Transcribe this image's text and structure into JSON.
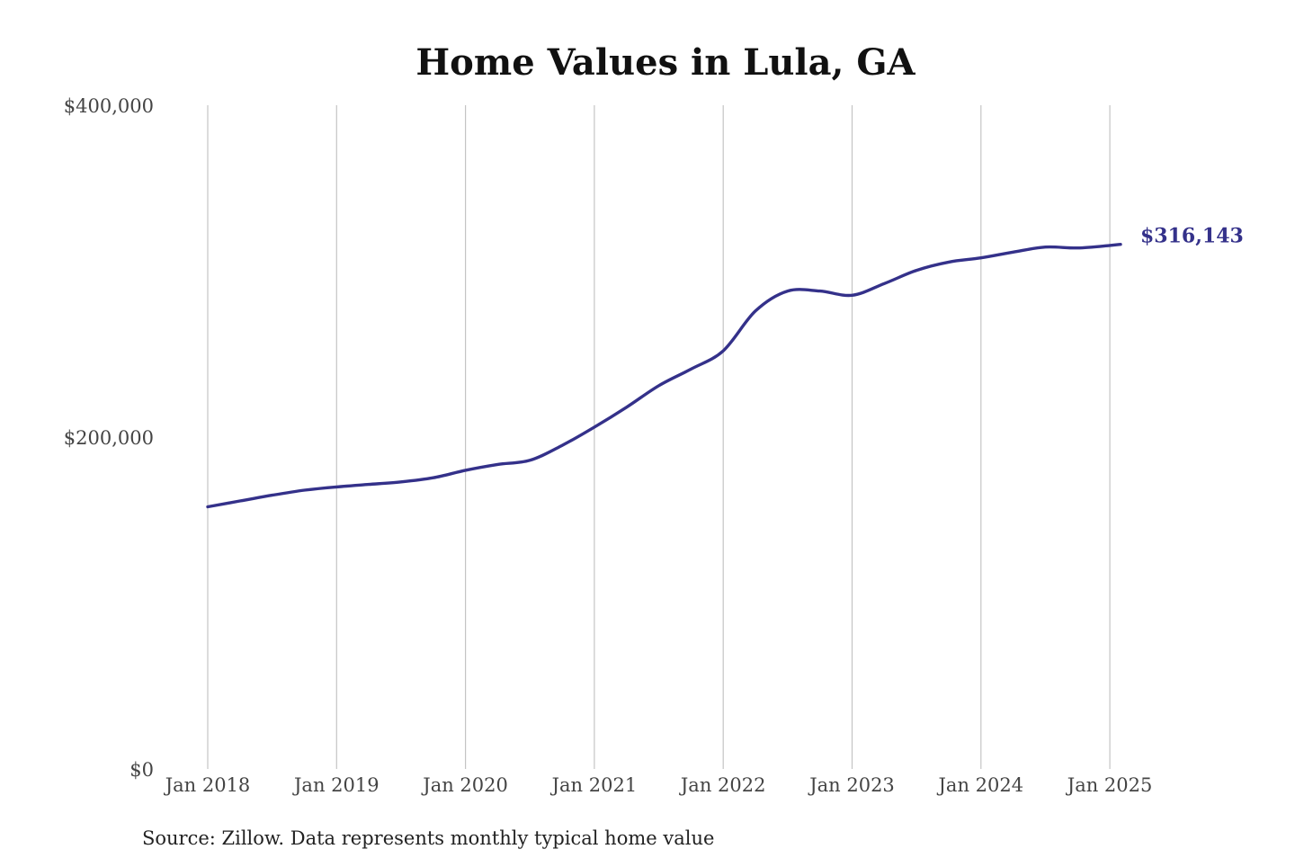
{
  "chart_data": {
    "type": "line",
    "title": "Home Values in Lula, GA",
    "source": "Source: Zillow. Data represents monthly typical home value",
    "xlabel": "",
    "ylabel": "",
    "ylim": [
      0,
      400000
    ],
    "xlim": [
      "2018-01",
      "2025-02"
    ],
    "y_ticks": [
      0,
      200000,
      400000
    ],
    "y_tick_labels": [
      "$0",
      "$200,000",
      "$400,000"
    ],
    "x_ticks": [
      "2018-01",
      "2019-01",
      "2020-01",
      "2021-01",
      "2022-01",
      "2023-01",
      "2024-01",
      "2025-01"
    ],
    "x_tick_labels": [
      "Jan 2018",
      "Jan 2019",
      "Jan 2020",
      "Jan 2021",
      "Jan 2022",
      "Jan 2023",
      "Jan 2024",
      "Jan 2025"
    ],
    "grid": {
      "x": true,
      "y": false
    },
    "line_color": "#34318a",
    "end_label": "$316,143",
    "series": [
      {
        "name": "",
        "x": [
          "2018-01",
          "2018-04",
          "2018-07",
          "2018-10",
          "2019-01",
          "2019-04",
          "2019-07",
          "2019-10",
          "2020-01",
          "2020-04",
          "2020-07",
          "2020-10",
          "2021-01",
          "2021-04",
          "2021-07",
          "2021-10",
          "2022-01",
          "2022-04",
          "2022-07",
          "2022-10",
          "2023-01",
          "2023-04",
          "2023-07",
          "2023-10",
          "2024-01",
          "2024-04",
          "2024-07",
          "2024-10",
          "2025-01",
          "2025-02"
        ],
        "values": [
          158000,
          161500,
          165000,
          168000,
          170000,
          171500,
          173000,
          175500,
          180000,
          183500,
          186000,
          195000,
          206000,
          218000,
          231000,
          241000,
          252000,
          276000,
          288000,
          288000,
          285500,
          292500,
          300500,
          305500,
          308000,
          311500,
          314500,
          314000,
          315500,
          316143
        ]
      }
    ]
  }
}
